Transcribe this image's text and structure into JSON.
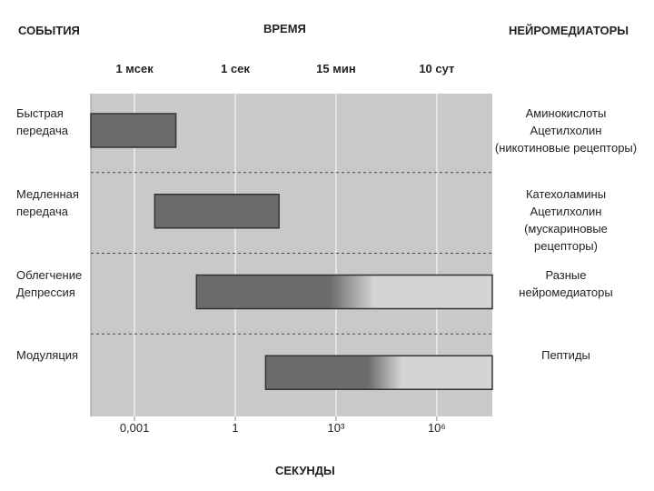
{
  "chart_data": {
    "type": "range-bar",
    "header_left": "СОБЫТИЯ",
    "header_center": "ВРЕМЯ",
    "header_right": "НЕЙРОМЕДИАТОРЫ",
    "xlabel": "СЕКУНДЫ",
    "categories": [
      "Быстрая\nпередача",
      "Медленная\nпередача",
      "Облегчение\nДепрессия",
      "Модуляция"
    ],
    "mediators": [
      "Аминокислоты\nАцетилхолин\n(никотиновые рецепторы)",
      "Катехоламины\nАцетилхолин\n(мускариновые рецепторы)",
      "Разные\nнейромедиаторы",
      "Пептиды"
    ],
    "starts": [
      5e-05,
      0.004,
      0.07,
      8
    ],
    "ends": [
      0.017,
      20,
      45000000,
      45000000
    ],
    "fade": [
      false,
      false,
      true,
      true
    ],
    "color": "#6b6b6b",
    "log_x": true,
    "xlim": [
      5e-05,
      45000000
    ],
    "xticks": [
      {
        "value": 0.001,
        "label": "0,001"
      },
      1,
      {
        "value": 1000,
        "label": "10³"
      },
      {
        "value": 1000000,
        "label": "10⁶"
      }
    ],
    "top_ticks": [
      {
        "value": 0.001,
        "label": "1 мсек"
      },
      {
        "value": 1,
        "label": "1 сек"
      },
      {
        "value": 1000,
        "label": "15 мин"
      },
      {
        "value": 1000000,
        "label": "10 сут"
      }
    ],
    "grid": true
  }
}
